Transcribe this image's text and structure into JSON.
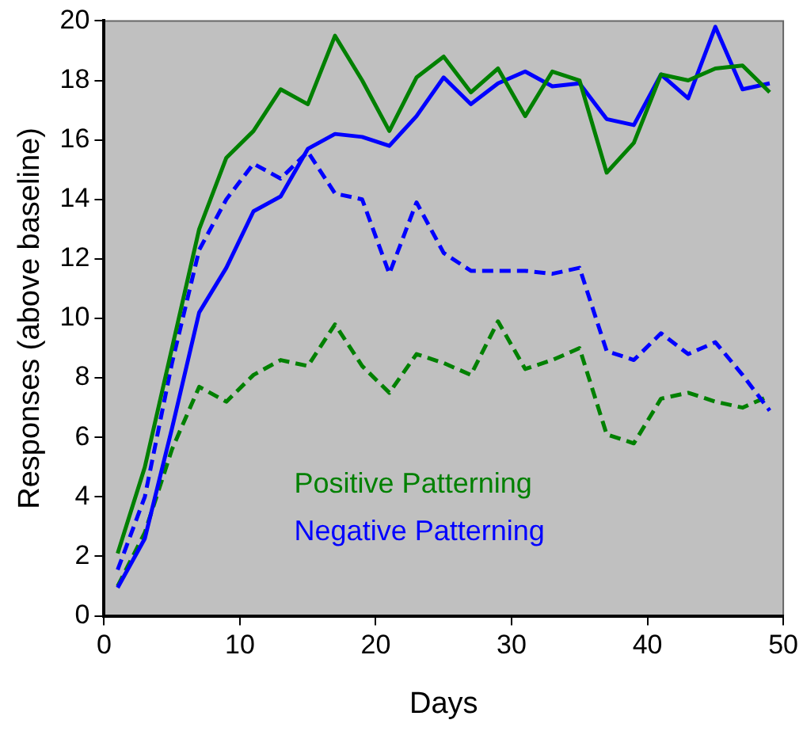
{
  "chart_data": {
    "type": "line",
    "xlabel": "Days",
    "ylabel": "Responses (above baseline)",
    "x": [
      1,
      3,
      5,
      7,
      9,
      11,
      13,
      15,
      17,
      19,
      21,
      23,
      25,
      27,
      29,
      31,
      33,
      35,
      37,
      39,
      41,
      43,
      45,
      47,
      49
    ],
    "series": [
      {
        "name": "Positive Patterning",
        "color": "#008000",
        "line_style": "solid",
        "values": [
          2.1,
          5.0,
          9.0,
          13.0,
          15.4,
          16.3,
          17.7,
          17.2,
          19.5,
          18.0,
          16.3,
          18.1,
          18.8,
          17.6,
          18.4,
          16.8,
          18.3,
          18.0,
          14.9,
          15.9,
          18.2,
          18.0,
          18.4,
          18.5,
          17.6
        ]
      },
      {
        "name": "Negative Patterning",
        "color": "#0000ff",
        "line_style": "solid",
        "values": [
          0.95,
          2.6,
          6.3,
          10.2,
          11.7,
          13.6,
          14.1,
          15.7,
          16.2,
          16.1,
          15.8,
          16.8,
          18.1,
          17.2,
          17.9,
          18.3,
          17.8,
          17.9,
          16.7,
          16.5,
          18.2,
          17.4,
          19.8,
          17.7,
          17.9
        ]
      },
      {
        "color": "#0000ff",
        "line_style": "dashed",
        "values": [
          1.55,
          4.0,
          8.5,
          12.3,
          14.0,
          15.2,
          14.7,
          15.6,
          14.2,
          14.0,
          11.5,
          13.9,
          12.2,
          11.6,
          11.6,
          11.6,
          11.5,
          11.7,
          8.9,
          8.6,
          9.5,
          8.8,
          9.2,
          8.1,
          6.9
        ]
      },
      {
        "color": "#008000",
        "line_style": "dashed",
        "values": [
          1.0,
          2.8,
          5.6,
          7.7,
          7.2,
          8.1,
          8.6,
          8.4,
          9.8,
          8.4,
          7.5,
          8.8,
          8.5,
          8.1,
          9.9,
          8.3,
          8.6,
          9.0,
          6.1,
          5.8,
          7.3,
          7.5,
          7.2,
          7.0,
          7.4
        ]
      }
    ],
    "xlim": [
      0,
      50
    ],
    "xticks": [
      0,
      10,
      20,
      30,
      40,
      50
    ],
    "ylim": [
      0,
      20
    ],
    "yticks": [
      0,
      2,
      4,
      6,
      8,
      10,
      12,
      14,
      16,
      18,
      20
    ],
    "grid": false,
    "legend": "bottom",
    "marker": "none"
  }
}
